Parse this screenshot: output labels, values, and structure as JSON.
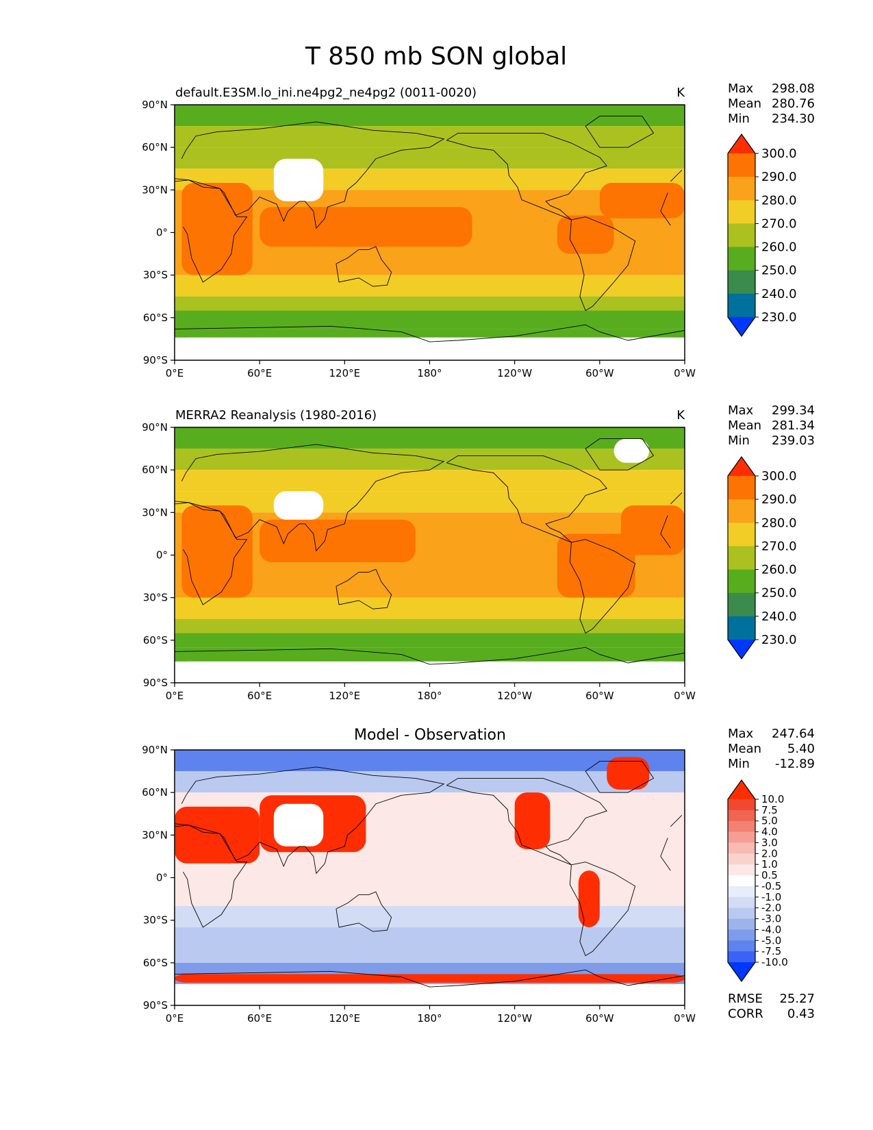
{
  "figure_title": "T 850 mb SON global",
  "colors": {
    "abs": [
      "#0037ff",
      "#00719c",
      "#3a8b4c",
      "#58ad1f",
      "#abc11f",
      "#f2cd25",
      "#f9a21a",
      "#fd7402",
      "#ff2e02"
    ],
    "diff": [
      "#0037ff",
      "#3b62f5",
      "#5e83ef",
      "#7e9ce9",
      "#9db3ea",
      "#bac9f0",
      "#d2dcf4",
      "#e7edfa",
      "#ffffff",
      "#fce8e6",
      "#f9d2ce",
      "#f7bbb4",
      "#f59f94",
      "#f28272",
      "#f06550",
      "#ef4a30",
      "#ff2e02"
    ],
    "land": "#ffffff",
    "coast": "#000000"
  },
  "charts": [
    {
      "id": "test",
      "title": "default.E3SM.lo_ini.ne4pg2_ne4pg2 (0011-0020)",
      "units": "K",
      "stats": [
        {
          "label": "Max",
          "value": "298.08"
        },
        {
          "label": "Mean",
          "value": "280.76"
        },
        {
          "label": "Min",
          "value": "234.30"
        }
      ],
      "colorbar_labels": [
        "300.0",
        "290.0",
        "280.0",
        "270.0",
        "260.0",
        "250.0",
        "240.0",
        "230.0"
      ]
    },
    {
      "id": "ref",
      "title": "MERRA2 Reanalysis (1980-2016)",
      "units": "K",
      "stats": [
        {
          "label": "Max",
          "value": "299.34"
        },
        {
          "label": "Mean",
          "value": "281.34"
        },
        {
          "label": "Min",
          "value": "239.03"
        }
      ],
      "colorbar_labels": [
        "300.0",
        "290.0",
        "280.0",
        "270.0",
        "260.0",
        "250.0",
        "240.0",
        "230.0"
      ]
    },
    {
      "id": "diff",
      "title": "Model - Observation",
      "units": "",
      "stats": [
        {
          "label": "Max",
          "value": "247.64"
        },
        {
          "label": "Mean",
          "value": "5.40"
        },
        {
          "label": "Min",
          "value": "-12.89"
        }
      ],
      "colorbar_labels": [
        "10.0",
        "7.5",
        "5.0",
        "4.0",
        "3.0",
        "2.0",
        "1.0",
        "0.5",
        "-0.5",
        "-1.0",
        "-2.0",
        "-3.0",
        "-4.0",
        "-5.0",
        "-7.5",
        "-10.0"
      ],
      "extra_stats": [
        {
          "label": "RMSE",
          "value": "25.27"
        },
        {
          "label": "CORR",
          "value": "0.43"
        }
      ]
    }
  ],
  "axes": {
    "xticks": [
      "0°E",
      "60°E",
      "120°E",
      "180°",
      "120°W",
      "60°W",
      "0°W"
    ],
    "yticks": [
      "90°N",
      "60°N",
      "30°N",
      "0°",
      "30°S",
      "60°S",
      "90°S"
    ]
  },
  "chart_data": {
    "type": "heatmap",
    "title": "T 850 mb SON global",
    "projection": "equirectangular",
    "xlim_lon": [
      0,
      360
    ],
    "ylim_lat": [
      -90,
      90
    ],
    "panels": [
      {
        "name": "default.E3SM.lo_ini.ne4pg2_ne4pg2 (0011-0020)",
        "units": "K",
        "max": 298.08,
        "mean": 280.76,
        "min": 234.3,
        "levels": [
          230,
          240,
          250,
          260,
          270,
          280,
          290,
          300
        ],
        "approx_zonal_bands": [
          {
            "lat": [
              75,
              90
            ],
            "value": 255
          },
          {
            "lat": [
              60,
              75
            ],
            "value": 262
          },
          {
            "lat": [
              45,
              60
            ],
            "value": 268
          },
          {
            "lat": [
              30,
              45
            ],
            "value": 278
          },
          {
            "lat": [
              -30,
              30
            ],
            "value": 284
          },
          {
            "lat": [
              -45,
              -30
            ],
            "value": 275
          },
          {
            "lat": [
              -55,
              -45
            ],
            "value": 266
          },
          {
            "lat": [
              -68,
              -55
            ],
            "value": 255
          },
          {
            "lat": [
              -74,
              -68
            ],
            "value": 252
          }
        ],
        "approx_warm_regions": [
          {
            "lon": [
              5,
              55
            ],
            "lat": [
              -30,
              35
            ],
            "value": 292
          },
          {
            "lon": [
              60,
              210
            ],
            "lat": [
              -10,
              18
            ],
            "value": 291
          },
          {
            "lon": [
              270,
              310
            ],
            "lat": [
              -15,
              12
            ],
            "value": 292
          },
          {
            "lon": [
              300,
              360
            ],
            "lat": [
              10,
              35
            ],
            "value": 291
          }
        ],
        "missing_regions": [
          {
            "lon": [
              70,
              105
            ],
            "lat": [
              22,
              52
            ]
          },
          {
            "lon": [
              0,
              360
            ],
            "lat": [
              -90,
              -74
            ]
          }
        ]
      },
      {
        "name": "MERRA2 Reanalysis (1980-2016)",
        "units": "K",
        "max": 299.34,
        "mean": 281.34,
        "min": 239.03,
        "levels": [
          230,
          240,
          250,
          260,
          270,
          280,
          290,
          300
        ],
        "approx_zonal_bands": [
          {
            "lat": [
              75,
              90
            ],
            "value": 258
          },
          {
            "lat": [
              60,
              75
            ],
            "value": 263
          },
          {
            "lat": [
              45,
              60
            ],
            "value": 270
          },
          {
            "lat": [
              30,
              45
            ],
            "value": 278
          },
          {
            "lat": [
              -30,
              30
            ],
            "value": 285
          },
          {
            "lat": [
              -45,
              -30
            ],
            "value": 275
          },
          {
            "lat": [
              -55,
              -45
            ],
            "value": 266
          },
          {
            "lat": [
              -65,
              -55
            ],
            "value": 255
          },
          {
            "lat": [
              -75,
              -65
            ],
            "value": 252
          }
        ],
        "approx_warm_regions": [
          {
            "lon": [
              5,
              55
            ],
            "lat": [
              -30,
              35
            ],
            "value": 292
          },
          {
            "lon": [
              60,
              170
            ],
            "lat": [
              -5,
              25
            ],
            "value": 292
          },
          {
            "lon": [
              270,
              325
            ],
            "lat": [
              -30,
              15
            ],
            "value": 292
          },
          {
            "lon": [
              315,
              360
            ],
            "lat": [
              0,
              35
            ],
            "value": 291
          }
        ],
        "missing_regions": [
          {
            "lon": [
              70,
              105
            ],
            "lat": [
              25,
              45
            ]
          },
          {
            "lon": [
              310,
              335
            ],
            "lat": [
              65,
              82
            ]
          },
          {
            "lon": [
              0,
              360
            ],
            "lat": [
              -90,
              -75
            ]
          }
        ]
      },
      {
        "name": "Model - Observation",
        "units": "K",
        "max": 247.64,
        "mean": 5.4,
        "min": -12.89,
        "rmse": 25.27,
        "corr": 0.43,
        "levels": [
          -10,
          -7.5,
          -5,
          -4,
          -3,
          -2,
          -1,
          -0.5,
          0.5,
          1,
          2,
          3,
          4,
          5,
          7.5,
          10
        ],
        "approx_zonal_bands": [
          {
            "lat": [
              75,
              90
            ],
            "value": -7
          },
          {
            "lat": [
              60,
              75
            ],
            "value": -3
          },
          {
            "lat": [
              -20,
              60
            ],
            "value": 0.8
          },
          {
            "lat": [
              -35,
              -20
            ],
            "value": -1.5
          },
          {
            "lat": [
              -60,
              -35
            ],
            "value": -3
          },
          {
            "lat": [
              -75,
              -60
            ],
            "value": -5
          }
        ],
        "approx_warm_regions": [
          {
            "lon": [
              60,
              135
            ],
            "lat": [
              18,
              58
            ],
            "value": 10
          },
          {
            "lon": [
              0,
              60
            ],
            "lat": [
              10,
              50
            ],
            "value": 10
          },
          {
            "lon": [
              240,
              265
            ],
            "lat": [
              20,
              60
            ],
            "value": 10
          },
          {
            "lon": [
              285,
              300
            ],
            "lat": [
              -35,
              5
            ],
            "value": 10
          },
          {
            "lon": [
              305,
              335
            ],
            "lat": [
              62,
              85
            ],
            "value": 10
          },
          {
            "lon": [
              0,
              360
            ],
            "lat": [
              -74,
              -68
            ],
            "value": 10
          }
        ],
        "missing_regions": [
          {
            "lon": [
              70,
              105
            ],
            "lat": [
              22,
              52
            ]
          },
          {
            "lon": [
              0,
              360
            ],
            "lat": [
              -90,
              -75
            ]
          }
        ]
      }
    ]
  }
}
